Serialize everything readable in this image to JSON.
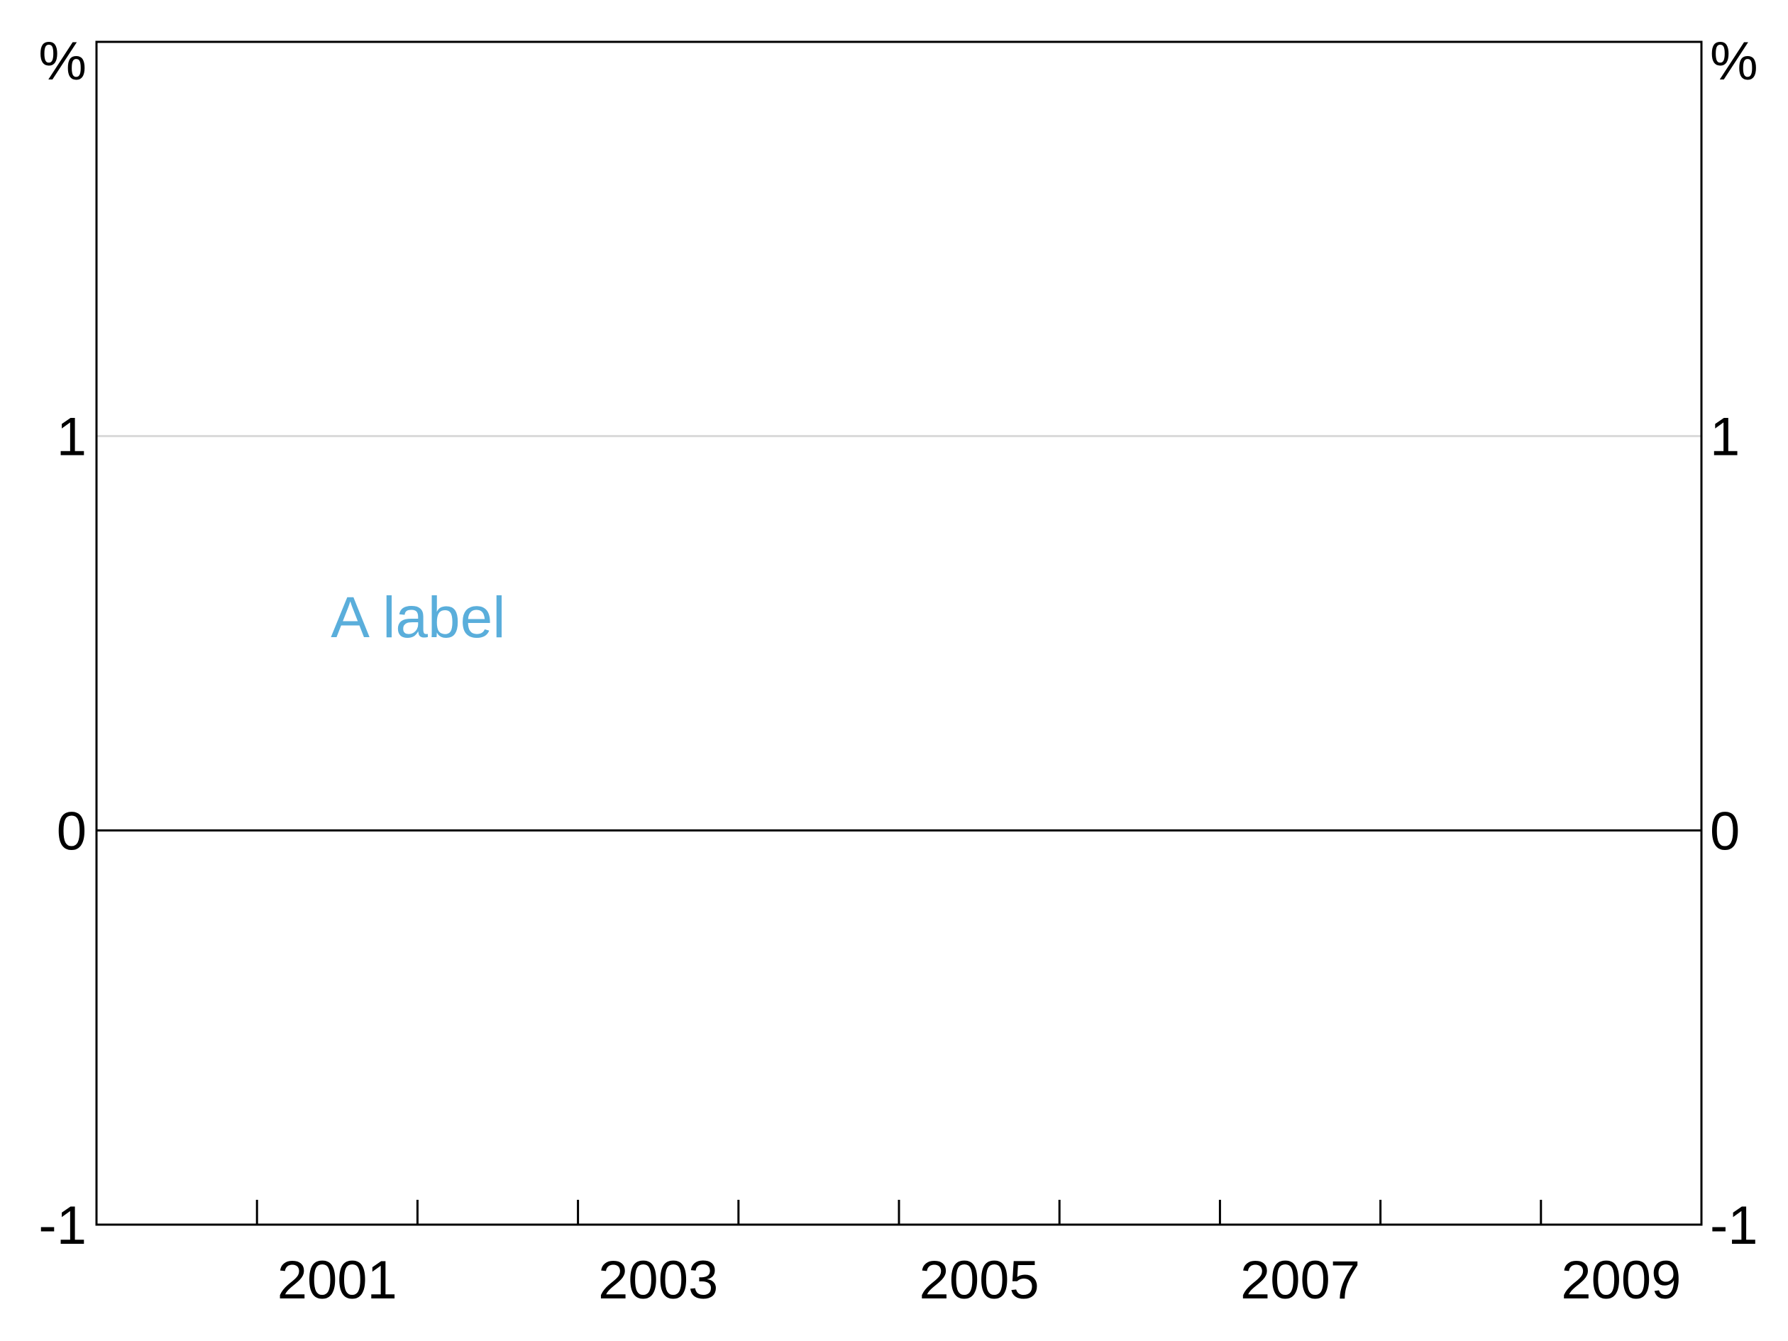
{
  "chart_data": {
    "type": "line",
    "title": "",
    "xlabel": "",
    "ylabel": "",
    "y_unit_left": "%",
    "y_unit_right": "%",
    "ylim": [
      -1,
      2
    ],
    "yticks": [
      -1,
      0,
      1
    ],
    "ytick_labels": [
      "-1",
      "0",
      "1"
    ],
    "xlim": [
      2000,
      2010
    ],
    "xticks": [
      2001,
      2003,
      2005,
      2007,
      2009
    ],
    "xtick_labels": [
      "2001",
      "2003",
      "2005",
      "2007",
      "2009"
    ],
    "x_minor_ticks": [
      2001,
      2002,
      2003,
      2004,
      2005,
      2006,
      2007,
      2008,
      2009
    ],
    "grid": true,
    "zero_line": true,
    "series": [],
    "annotations": [
      {
        "text": "A label",
        "x": 2001.46,
        "y": 0.49,
        "color": "#5aaedb"
      }
    ],
    "colors": {
      "frame": "#000000",
      "grid": "#d9d9d9",
      "zero_line": "#000000",
      "annotation": "#5aaedb"
    }
  }
}
